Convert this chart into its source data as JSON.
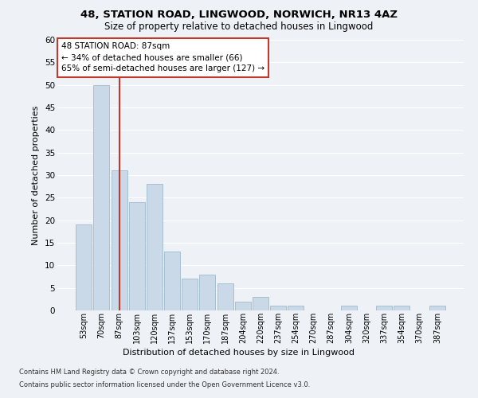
{
  "title1": "48, STATION ROAD, LINGWOOD, NORWICH, NR13 4AZ",
  "title2": "Size of property relative to detached houses in Lingwood",
  "xlabel": "Distribution of detached houses by size in Lingwood",
  "ylabel": "Number of detached properties",
  "bin_labels": [
    "53sqm",
    "70sqm",
    "87sqm",
    "103sqm",
    "120sqm",
    "137sqm",
    "153sqm",
    "170sqm",
    "187sqm",
    "204sqm",
    "220sqm",
    "237sqm",
    "254sqm",
    "270sqm",
    "287sqm",
    "304sqm",
    "320sqm",
    "337sqm",
    "354sqm",
    "370sqm",
    "387sqm"
  ],
  "bar_values": [
    19,
    50,
    31,
    24,
    28,
    13,
    7,
    8,
    6,
    2,
    3,
    1,
    1,
    0,
    0,
    1,
    0,
    1,
    1,
    0,
    1
  ],
  "bar_color": "#c9d9e8",
  "bar_edge_color": "#a8bfd0",
  "highlight_index": 2,
  "highlight_line_color": "#c0392b",
  "ylim": [
    0,
    60
  ],
  "yticks": [
    0,
    5,
    10,
    15,
    20,
    25,
    30,
    35,
    40,
    45,
    50,
    55,
    60
  ],
  "annotation_title": "48 STATION ROAD: 87sqm",
  "annotation_line1": "← 34% of detached houses are smaller (66)",
  "annotation_line2": "65% of semi-detached houses are larger (127) →",
  "annotation_box_color": "#ffffff",
  "annotation_box_edge_color": "#c0392b",
  "footnote1": "Contains HM Land Registry data © Crown copyright and database right 2024.",
  "footnote2": "Contains public sector information licensed under the Open Government Licence v3.0.",
  "background_color": "#eef2f7",
  "plot_background": "#eef2f7",
  "grid_color": "#ffffff",
  "title1_fontsize": 9.5,
  "title2_fontsize": 8.5,
  "ylabel_fontsize": 8,
  "xlabel_fontsize": 8,
  "ytick_fontsize": 7.5,
  "xtick_fontsize": 7,
  "annotation_fontsize": 7.5,
  "footnote_fontsize": 6
}
